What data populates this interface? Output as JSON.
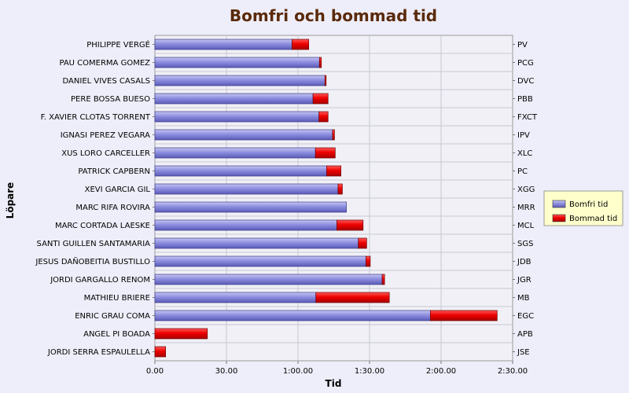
{
  "chart_data": {
    "type": "bar",
    "orientation": "horizontal",
    "stacked": true,
    "title": "Bomfri och bommad tid",
    "xlabel": "Tid",
    "ylabel": "Löpare",
    "xlim": [
      0,
      150
    ],
    "x_unit": "minutes",
    "x_ticks": [
      0,
      30,
      60,
      90,
      120,
      150
    ],
    "x_tick_labels": [
      "0.00",
      "30.00",
      "1:00.00",
      "1:30.00",
      "2:00.00",
      "2:30.00"
    ],
    "grid": true,
    "legend_position": "right",
    "categories": [
      "PHILIPPE VERGÉ",
      "PAU COMERMA GOMEZ",
      "DANIEL VIVES CASALS",
      "PERE BOSSA BUESO",
      "F. XAVIER CLOTAS TORRENT",
      "IGNASI PEREZ VEGARA",
      "XUS LORO CARCELLER",
      "PATRICK CAPBERN",
      "XEVI GARCIA GIL",
      "MARC RIFA ROVIRA",
      "MARC CORTADA LAESKE",
      "SANTI GUILLEN SANTAMARIA",
      "JESUS DAÑOBEITIA BUSTILLO",
      "JORDI GARGALLO RENOM",
      "MATHIEU BRIERE",
      "ENRIC GRAU COMA",
      "ANGEL PI BOADA",
      "JORDI SERRA ESPAULELLA"
    ],
    "abbreviations": [
      "PV",
      "PCG",
      "DVC",
      "PBB",
      "FXCT",
      "IPV",
      "XLC",
      "PC",
      "XGG",
      "MRR",
      "MCL",
      "SGS",
      "JDB",
      "JGR",
      "MB",
      "EGC",
      "APB",
      "JSE"
    ],
    "series": [
      {
        "name": "Bomfri tid",
        "color": "#8b8bdc",
        "values": [
          57.5,
          69,
          71.3,
          66.3,
          68.8,
          74.5,
          67.3,
          72,
          76.8,
          80.3,
          76.3,
          85.3,
          88.5,
          95.3,
          67.5,
          115.5,
          0,
          0
        ]
      },
      {
        "name": "Bommad tid",
        "color": "#e00000",
        "values": [
          7,
          0.8,
          0.5,
          6.3,
          3.8,
          0.8,
          8.3,
          6,
          1.8,
          0,
          11,
          3.5,
          1.8,
          1,
          30.8,
          28,
          22,
          4.5
        ]
      }
    ]
  }
}
